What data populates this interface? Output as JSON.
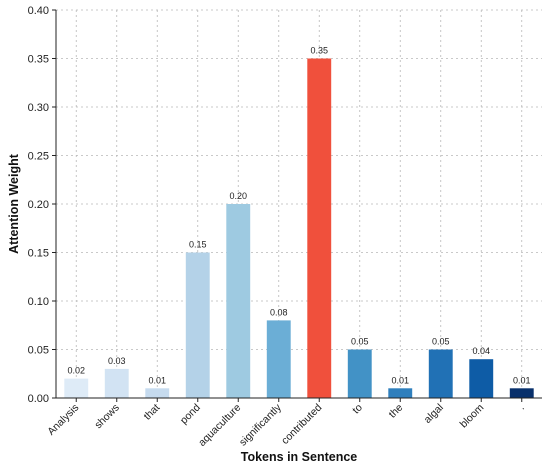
{
  "chart_data": {
    "type": "bar",
    "categories": [
      "Analysis",
      "shows",
      "that",
      "pond",
      "aquaculture",
      "significantly",
      "contributed",
      "to",
      "the",
      "algal",
      "bloom",
      "."
    ],
    "values": [
      0.02,
      0.03,
      0.01,
      0.15,
      0.2,
      0.08,
      0.35,
      0.05,
      0.01,
      0.05,
      0.04,
      0.01
    ],
    "value_labels": [
      "0.02",
      "0.03",
      "0.01",
      "0.15",
      "0.20",
      "0.08",
      "0.35",
      "0.05",
      "0.01",
      "0.05",
      "0.04",
      "0.01"
    ],
    "colors": [
      "#deebf7",
      "#d2e3f3",
      "#c6dbef",
      "#b4d2e8",
      "#9ecae1",
      "#6baed6",
      "#f0503c",
      "#4292c6",
      "#2f7fbd",
      "#2171b5",
      "#0e5ca6",
      "#08306b"
    ],
    "title": "",
    "xlabel": "Tokens in Sentence",
    "ylabel": "Attention Weight",
    "ylim": [
      0,
      0.4
    ],
    "yticks": [
      "0.00",
      "0.05",
      "0.10",
      "0.15",
      "0.20",
      "0.25",
      "0.30",
      "0.35",
      "0.40"
    ],
    "grid": true,
    "highlight_index": 6
  }
}
